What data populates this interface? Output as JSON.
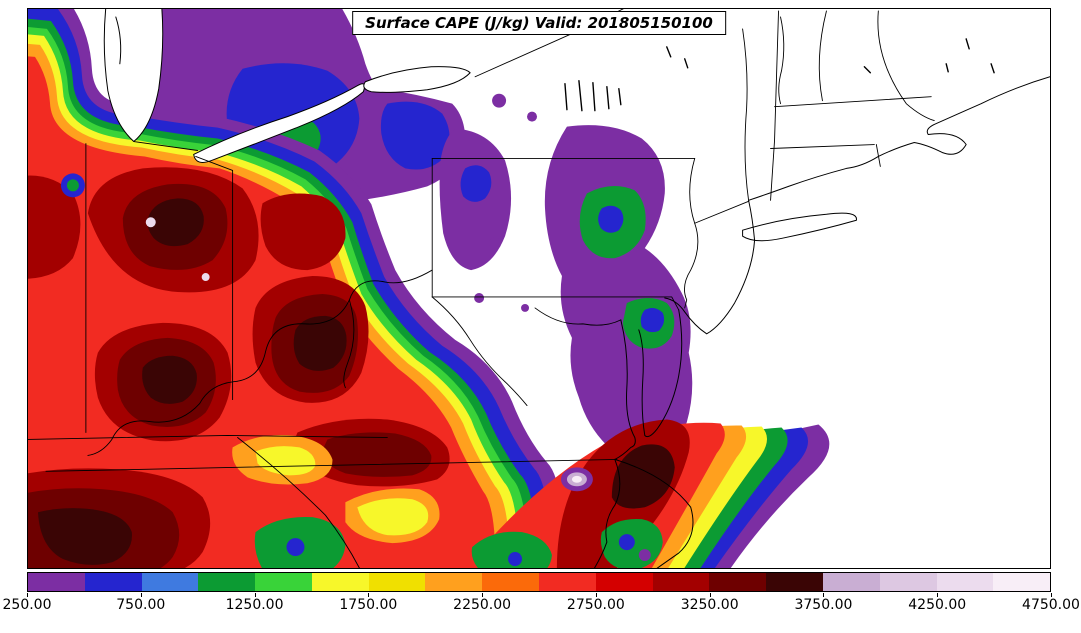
{
  "figure": {
    "title": "Surface CAPE (J/kg) Valid: 201805150100"
  },
  "colorbar": {
    "tick_labels": [
      "250.00",
      "750.00",
      "1250.00",
      "1750.00",
      "2250.00",
      "2750.00",
      "3250.00",
      "3750.00",
      "4250.00",
      "4750.00"
    ],
    "colors": [
      "#7c2ea3",
      "#2525cf",
      "#3f7ae0",
      "#0c9b33",
      "#39d339",
      "#f7f72a",
      "#f0e000",
      "#ffa01e",
      "#fb6a0a",
      "#f22b22",
      "#d40000",
      "#a30000",
      "#6e0000",
      "#3a0505",
      "#c9aed3",
      "#ddc8e2",
      "#ecdcee",
      "#f8eef7"
    ],
    "min": 250,
    "max": 4750,
    "interval": 250
  },
  "chart_data": {
    "type": "heatmap",
    "title": "Surface CAPE (J/kg) Valid: 201805150100",
    "variable": "Surface CAPE",
    "units": "J/kg",
    "valid": "201805150100",
    "region": "Northeastern United States and Mid-Atlantic, Great Lakes to Atlantic coast",
    "levels": [
      250,
      500,
      750,
      1000,
      1250,
      1500,
      1750,
      2000,
      2250,
      2500,
      2750,
      3000,
      3250,
      3500,
      3750,
      4000,
      4250,
      4500,
      4750
    ],
    "palette": [
      "#7c2ea3",
      "#2525cf",
      "#3f7ae0",
      "#0c9b33",
      "#39d339",
      "#f7f72a",
      "#f0e000",
      "#ffa01e",
      "#fb6a0a",
      "#f22b22",
      "#d40000",
      "#a30000",
      "#6e0000",
      "#3a0505",
      "#c9aed3",
      "#ddc8e2",
      "#ecdcee",
      "#f8eef7"
    ],
    "legend_position": "bottom",
    "grid": false,
    "approx_field": [
      {
        "area": "Ohio Valley / Indiana / Kentucky / West Virginia",
        "cape_jkg": "2500-3700, widespread dark red with embedded maxima above 3500"
      },
      {
        "area": "Great Lakes fringe and western New York",
        "cape_jkg": "250-1000 purple-to-blue gradient ringing the high-CAPE air mass"
      },
      {
        "area": "Central Pennsylvania / New Jersey / New England",
        "cape_jkg": "below 250 (uncontoured white)"
      },
      {
        "area": "Eastern Pennsylvania pocket",
        "cape_jkg": "250-1500 purple patch with green and blue core"
      },
      {
        "area": "Maryland / Chesapeake Bay / Delmarva",
        "cape_jkg": "250-1500 purple with local green-blue spots"
      },
      {
        "area": "Coastal Virginia / North Carolina",
        "cape_jkg": "2750-3750 dark red maximum hugging the coast"
      },
      {
        "area": "Offshore Atlantic band (bottom right)",
        "cape_jkg": "3250 decreasing southeastward to 250 in banded gradient"
      },
      {
        "area": "Tiny pale spots (Kentucky interior, VA coast)",
        "cape_jkg": "above 3750 (pale lavender fills)"
      }
    ]
  }
}
